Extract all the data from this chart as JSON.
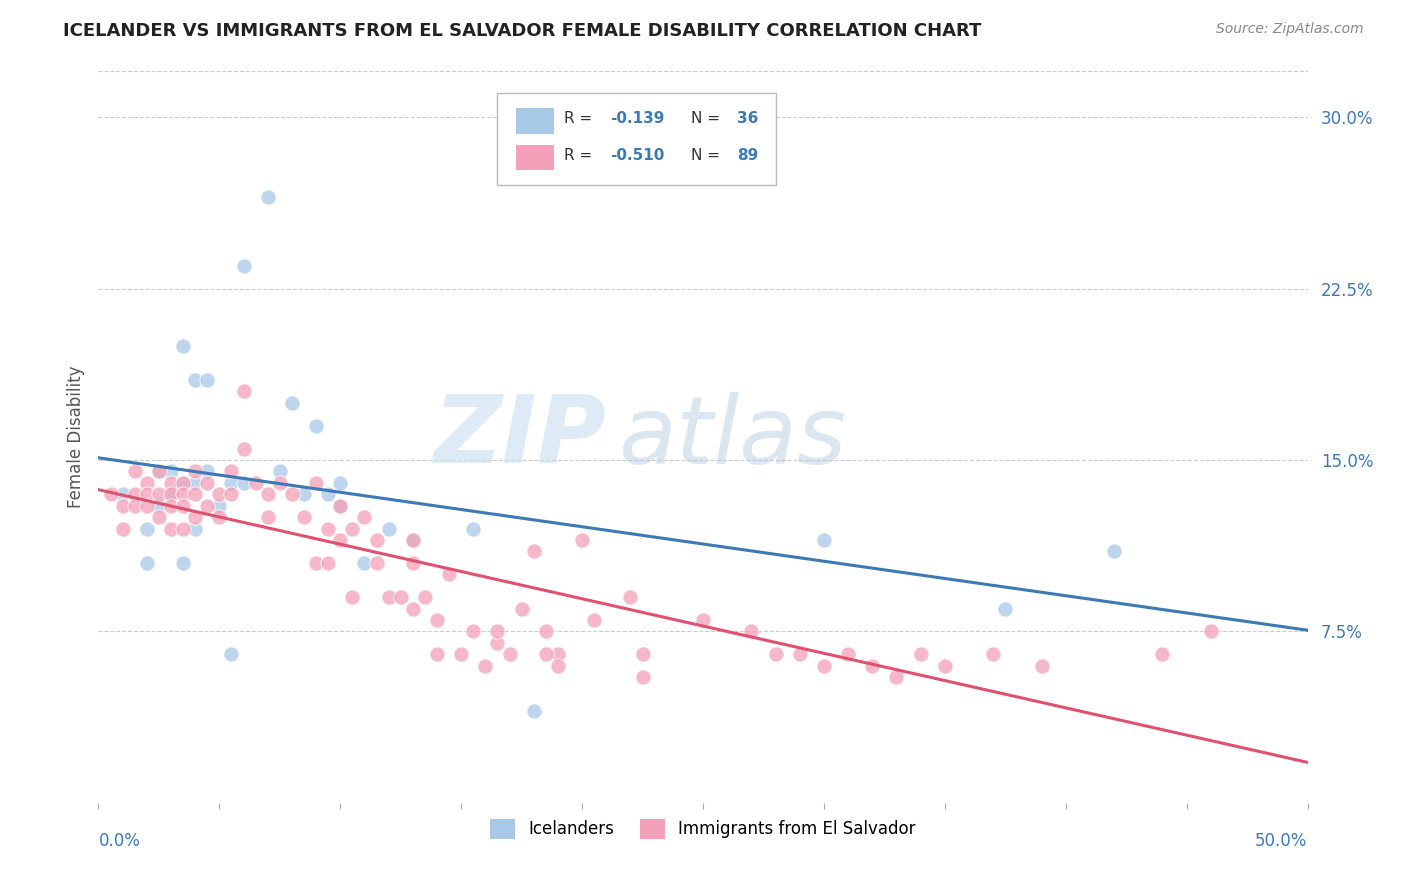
{
  "title": "ICELANDER VS IMMIGRANTS FROM EL SALVADOR FEMALE DISABILITY CORRELATION CHART",
  "source": "Source: ZipAtlas.com",
  "ylabel": "Female Disability",
  "right_yticks": [
    "7.5%",
    "15.0%",
    "22.5%",
    "30.0%"
  ],
  "right_ytick_vals": [
    0.075,
    0.15,
    0.225,
    0.3
  ],
  "xlim": [
    0.0,
    0.5
  ],
  "ylim": [
    0.0,
    0.32
  ],
  "watermark_zip": "ZIP",
  "watermark_atlas": "atlas",
  "legend_label1": "Icelanders",
  "legend_label2": "Immigrants from El Salvador",
  "color_blue": "#a8c8e8",
  "color_pink": "#f4a0b8",
  "color_line_blue": "#3d7ab5",
  "color_line_pink": "#e05070",
  "blue_x": [
    0.01,
    0.02,
    0.02,
    0.025,
    0.025,
    0.03,
    0.03,
    0.035,
    0.035,
    0.035,
    0.04,
    0.04,
    0.04,
    0.045,
    0.045,
    0.05,
    0.055,
    0.055,
    0.06,
    0.06,
    0.07,
    0.075,
    0.08,
    0.085,
    0.09,
    0.095,
    0.1,
    0.1,
    0.11,
    0.12,
    0.13,
    0.155,
    0.18,
    0.3,
    0.375,
    0.42
  ],
  "blue_y": [
    0.135,
    0.12,
    0.105,
    0.145,
    0.13,
    0.135,
    0.145,
    0.2,
    0.14,
    0.105,
    0.185,
    0.14,
    0.12,
    0.185,
    0.145,
    0.13,
    0.14,
    0.065,
    0.235,
    0.14,
    0.265,
    0.145,
    0.175,
    0.135,
    0.165,
    0.135,
    0.13,
    0.14,
    0.105,
    0.12,
    0.115,
    0.12,
    0.04,
    0.115,
    0.085,
    0.11
  ],
  "pink_x": [
    0.005,
    0.01,
    0.01,
    0.015,
    0.015,
    0.015,
    0.02,
    0.02,
    0.02,
    0.025,
    0.025,
    0.025,
    0.03,
    0.03,
    0.03,
    0.03,
    0.035,
    0.035,
    0.035,
    0.035,
    0.04,
    0.04,
    0.04,
    0.045,
    0.045,
    0.05,
    0.05,
    0.055,
    0.055,
    0.06,
    0.06,
    0.065,
    0.07,
    0.07,
    0.075,
    0.08,
    0.085,
    0.09,
    0.09,
    0.095,
    0.095,
    0.1,
    0.1,
    0.105,
    0.105,
    0.11,
    0.115,
    0.115,
    0.12,
    0.125,
    0.13,
    0.13,
    0.13,
    0.135,
    0.14,
    0.14,
    0.145,
    0.15,
    0.155,
    0.16,
    0.165,
    0.17,
    0.175,
    0.18,
    0.185,
    0.19,
    0.2,
    0.205,
    0.22,
    0.225,
    0.225,
    0.25,
    0.27,
    0.28,
    0.29,
    0.3,
    0.31,
    0.32,
    0.33,
    0.34,
    0.35,
    0.37,
    0.39,
    0.44,
    0.46,
    0.165,
    0.185,
    0.19
  ],
  "pink_y": [
    0.135,
    0.13,
    0.12,
    0.145,
    0.135,
    0.13,
    0.14,
    0.135,
    0.13,
    0.145,
    0.135,
    0.125,
    0.14,
    0.135,
    0.13,
    0.12,
    0.14,
    0.135,
    0.13,
    0.12,
    0.145,
    0.135,
    0.125,
    0.14,
    0.13,
    0.135,
    0.125,
    0.145,
    0.135,
    0.18,
    0.155,
    0.14,
    0.135,
    0.125,
    0.14,
    0.135,
    0.125,
    0.14,
    0.105,
    0.12,
    0.105,
    0.13,
    0.115,
    0.12,
    0.09,
    0.125,
    0.115,
    0.105,
    0.09,
    0.09,
    0.115,
    0.105,
    0.085,
    0.09,
    0.08,
    0.065,
    0.1,
    0.065,
    0.075,
    0.06,
    0.07,
    0.065,
    0.085,
    0.11,
    0.075,
    0.065,
    0.115,
    0.08,
    0.09,
    0.065,
    0.055,
    0.08,
    0.075,
    0.065,
    0.065,
    0.06,
    0.065,
    0.06,
    0.055,
    0.065,
    0.06,
    0.065,
    0.06,
    0.065,
    0.075,
    0.075,
    0.065,
    0.06
  ]
}
